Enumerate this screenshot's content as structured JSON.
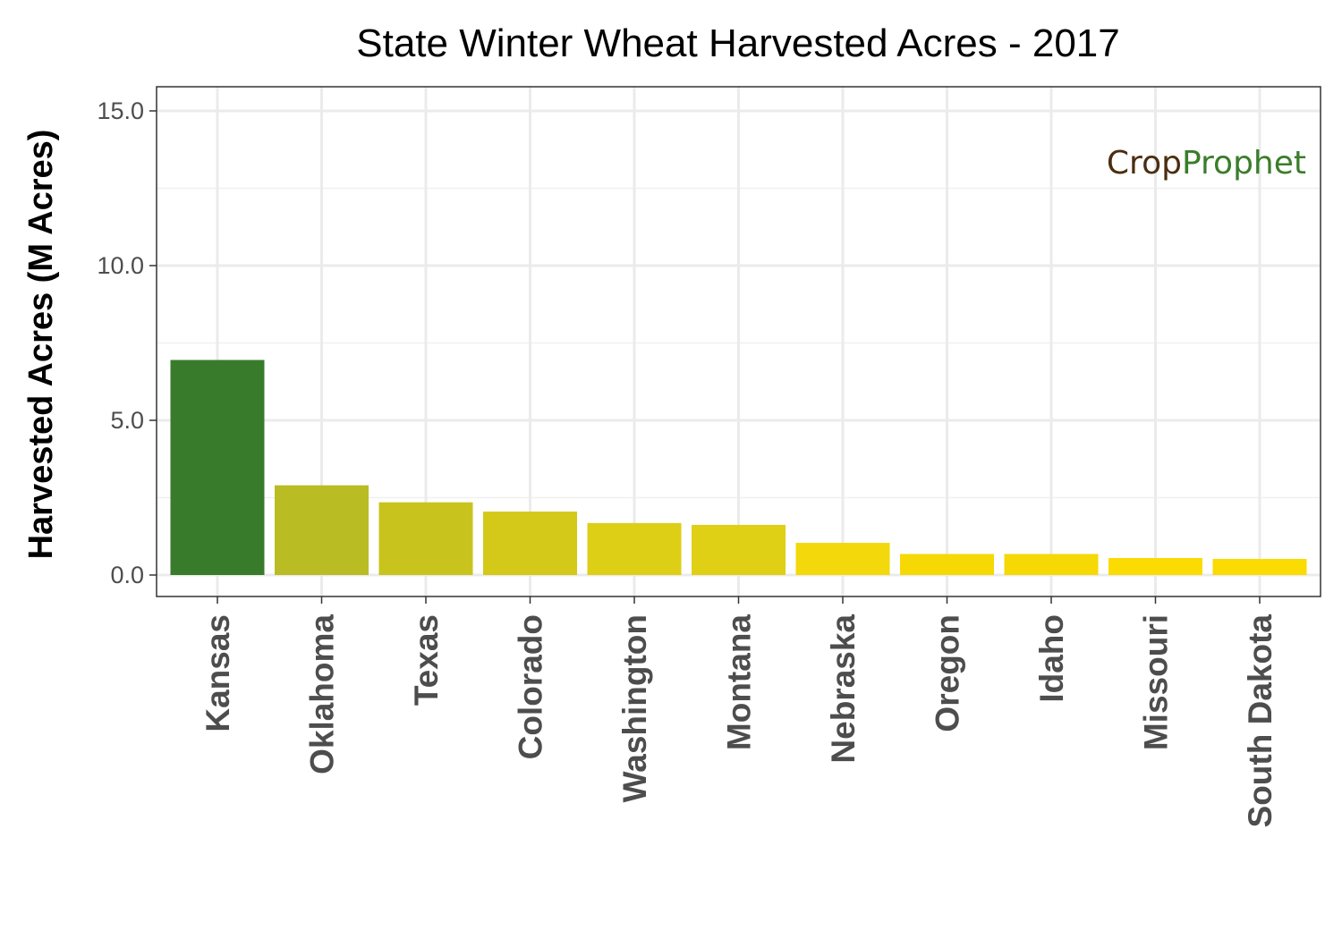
{
  "chart_data": {
    "type": "bar",
    "title": "State Winter Wheat Harvested Acres - 2017",
    "xlabel": "",
    "ylabel": "Harvested Acres (M Acres)",
    "ylim": [
      -0.6,
      15.7
    ],
    "yticks": [
      0.0,
      5.0,
      10.0,
      15.0
    ],
    "ytick_labels": [
      "0.0",
      "5.0",
      "10.0",
      "15.0"
    ],
    "grid": true,
    "categories": [
      "Kansas",
      "Oklahoma",
      "Texas",
      "Colorado",
      "Washington",
      "Montana",
      "Nebraska",
      "Oregon",
      "Idaho",
      "Missouri",
      "South Dakota"
    ],
    "values": [
      6.95,
      2.9,
      2.35,
      2.05,
      1.68,
      1.62,
      1.04,
      0.68,
      0.68,
      0.55,
      0.52
    ],
    "bar_colors": [
      "#387c2b",
      "#b9bc23",
      "#c8c41d",
      "#d4c918",
      "#ddce16",
      "#dfcf15",
      "#f3d80b",
      "#f6d805",
      "#f6d805",
      "#fadb02",
      "#fadb02"
    ]
  },
  "logo": {
    "part1": "Crop",
    "part2": "Prophet",
    "color1": "#4a2e10",
    "color2": "#3a7d2a"
  }
}
